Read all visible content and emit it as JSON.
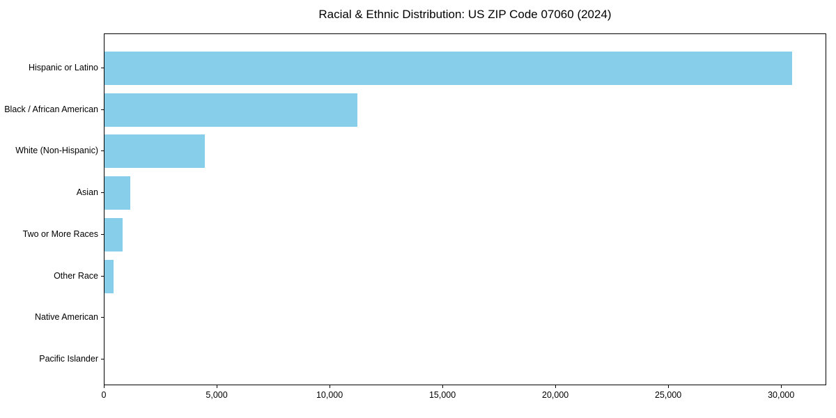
{
  "chart_data": {
    "type": "bar",
    "orientation": "horizontal",
    "title": "Racial & Ethnic Distribution: US ZIP Code 07060 (2024)",
    "categories": [
      "Hispanic or Latino",
      "Black / African American",
      "White (Non-Hispanic)",
      "Asian",
      "Two or More Races",
      "Other Race",
      "Native American",
      "Pacific Islander"
    ],
    "values": [
      30450,
      11200,
      4430,
      1130,
      800,
      400,
      0,
      0
    ],
    "xlabel": "",
    "ylabel": "",
    "xlim": [
      0,
      32000
    ],
    "x_ticks": [
      0,
      5000,
      10000,
      15000,
      20000,
      25000,
      30000
    ],
    "x_tick_labels": [
      "0",
      "5,000",
      "10,000",
      "15,000",
      "20,000",
      "25,000",
      "30,000"
    ],
    "bar_color": "#87CEEB",
    "text_color": "#000000",
    "grid": false,
    "legend_position": "none"
  }
}
